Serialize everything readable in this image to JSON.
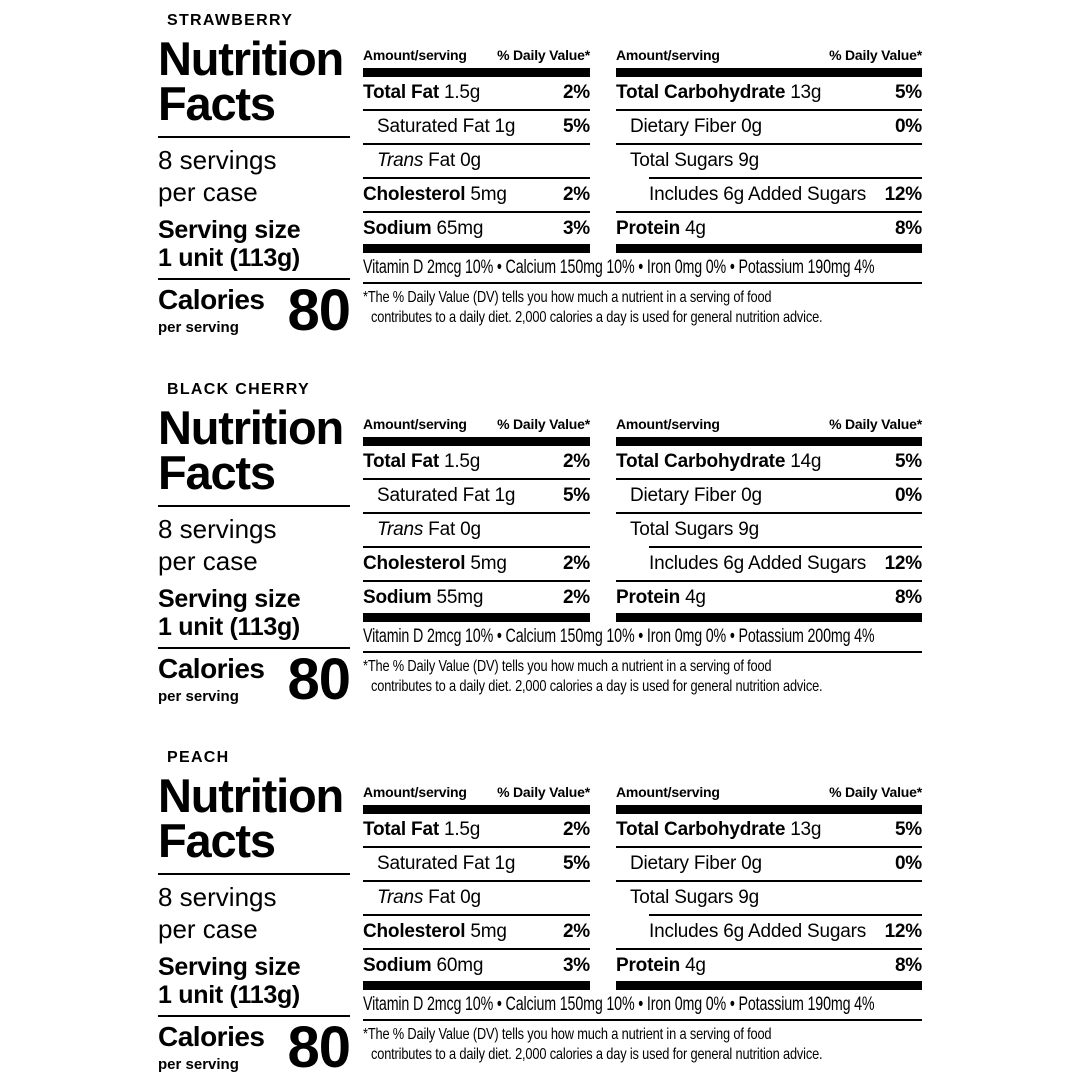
{
  "colors": {
    "text": "#000000",
    "background": "#ffffff"
  },
  "panels": [
    {
      "flavor": "STRAWBERRY",
      "facts_title": "Nutrition Facts",
      "servings": "8 servings\nper case",
      "serving_size": "Serving size\n1 unit (113g)",
      "calories_label": "Calories",
      "calories_sub": "per serving",
      "calories_value": "80",
      "col_header_amount": "Amount/serving",
      "col_header_dv": "% Daily Value*",
      "col1": {
        "rows": [
          {
            "name": "Total Fat",
            "amount": "1.5g",
            "dv": "2%"
          },
          {
            "name": "Saturated Fat",
            "amount": "1g",
            "dv": "5%"
          },
          {
            "name": "Trans",
            "amount": "Fat 0g",
            "dv": ""
          },
          {
            "name": "Cholesterol",
            "amount": "5mg",
            "dv": "2%"
          },
          {
            "name": "Sodium",
            "amount": "65mg",
            "dv": "3%"
          }
        ]
      },
      "col2": {
        "rows": [
          {
            "name": "Total Carbohydrate",
            "amount": "13g",
            "dv": "5%"
          },
          {
            "name": "Dietary Fiber",
            "amount": "0g",
            "dv": "0%"
          },
          {
            "name": "Total Sugars",
            "amount": "9g",
            "dv": ""
          },
          {
            "name": "Includes 6g Added Sugars",
            "amount": "",
            "dv": "12%"
          },
          {
            "name": "Protein",
            "amount": "4g",
            "dv": "8%"
          }
        ]
      },
      "vitamins": "Vitamin D 2mcg 10% • Calcium 150mg 10% • Iron 0mg 0% • Potassium 190mg 4%",
      "footnote_lines": [
        "*The % Daily Value (DV) tells you how much a nutrient in a serving of food",
        "contributes to a daily diet. 2,000 calories a day is used for general nutrition advice."
      ]
    },
    {
      "flavor": "BLACK CHERRY",
      "facts_title": "Nutrition Facts",
      "servings": "8 servings\nper case",
      "serving_size": "Serving size\n1 unit (113g)",
      "calories_label": "Calories",
      "calories_sub": "per serving",
      "calories_value": "80",
      "col_header_amount": "Amount/serving",
      "col_header_dv": "% Daily Value*",
      "col1": {
        "rows": [
          {
            "name": "Total Fat",
            "amount": "1.5g",
            "dv": "2%"
          },
          {
            "name": "Saturated Fat",
            "amount": "1g",
            "dv": "5%"
          },
          {
            "name": "Trans",
            "amount": "Fat 0g",
            "dv": ""
          },
          {
            "name": "Cholesterol",
            "amount": "5mg",
            "dv": "2%"
          },
          {
            "name": "Sodium",
            "amount": "55mg",
            "dv": "2%"
          }
        ]
      },
      "col2": {
        "rows": [
          {
            "name": "Total Carbohydrate",
            "amount": "14g",
            "dv": "5%"
          },
          {
            "name": "Dietary Fiber",
            "amount": "0g",
            "dv": "0%"
          },
          {
            "name": "Total Sugars",
            "amount": "9g",
            "dv": ""
          },
          {
            "name": "Includes 6g Added Sugars",
            "amount": "",
            "dv": "12%"
          },
          {
            "name": "Protein",
            "amount": "4g",
            "dv": "8%"
          }
        ]
      },
      "vitamins": "Vitamin D 2mcg 10% • Calcium 150mg 10% • Iron 0mg 0% • Potassium 200mg 4%",
      "footnote_lines": [
        "*The % Daily Value (DV) tells you how much a nutrient in a serving of food",
        "contributes to a daily diet. 2,000 calories a day is used for general nutrition advice."
      ]
    },
    {
      "flavor": "PEACH",
      "facts_title": "Nutrition Facts",
      "servings": "8 servings\nper case",
      "serving_size": "Serving size\n1 unit (113g)",
      "calories_label": "Calories",
      "calories_sub": "per serving",
      "calories_value": "80",
      "col_header_amount": "Amount/serving",
      "col_header_dv": "% Daily Value*",
      "col1": {
        "rows": [
          {
            "name": "Total Fat",
            "amount": "1.5g",
            "dv": "2%"
          },
          {
            "name": "Saturated Fat",
            "amount": "1g",
            "dv": "5%"
          },
          {
            "name": "Trans",
            "amount": "Fat 0g",
            "dv": ""
          },
          {
            "name": "Cholesterol",
            "amount": "5mg",
            "dv": "2%"
          },
          {
            "name": "Sodium",
            "amount": "60mg",
            "dv": "3%"
          }
        ]
      },
      "col2": {
        "rows": [
          {
            "name": "Total Carbohydrate",
            "amount": "13g",
            "dv": "5%"
          },
          {
            "name": "Dietary Fiber",
            "amount": "0g",
            "dv": "0%"
          },
          {
            "name": "Total Sugars",
            "amount": "9g",
            "dv": ""
          },
          {
            "name": "Includes 6g Added Sugars",
            "amount": "",
            "dv": "12%"
          },
          {
            "name": "Protein",
            "amount": "4g",
            "dv": "8%"
          }
        ]
      },
      "vitamins": "Vitamin D 2mcg 10% • Calcium 150mg 10% • Iron 0mg 0% • Potassium 190mg 4%",
      "footnote_lines": [
        "*The % Daily Value (DV) tells you how much a nutrient in a serving of food",
        "contributes to a daily diet. 2,000 calories a day is used for general nutrition advice."
      ]
    }
  ]
}
